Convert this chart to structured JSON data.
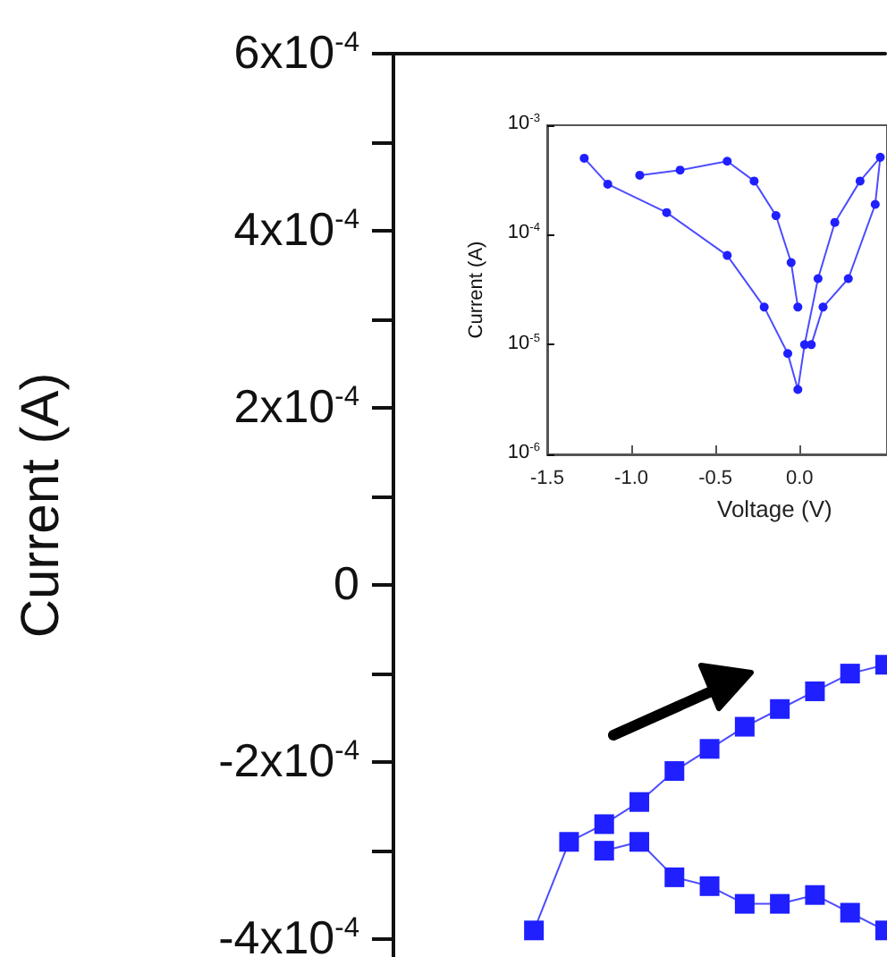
{
  "chart_data": [
    {
      "type": "line",
      "ylabel": "Current (A)",
      "tick_labels": "y",
      "marker": "square",
      "line_style": "solid",
      "categories": [
        null,
        null,
        null,
        null,
        null,
        null,
        null,
        null,
        null,
        null,
        null,
        null,
        null,
        null,
        null
      ],
      "series": [
        {
          "color": "#1f1fff",
          "values": [
            null,
            null,
            null,
            null,
            -0.00039,
            -0.00029,
            -0.00027,
            -0.000245,
            -0.00021,
            -0.000185,
            -0.00016,
            -0.00014,
            -0.00012,
            -0.0001,
            -9e-05
          ]
        },
        {
          "color": "#1f1fff",
          "values": [
            null,
            null,
            null,
            null,
            null,
            null,
            -0.0003,
            -0.00029,
            -0.00033,
            -0.00034,
            -0.00036,
            -0.00036,
            -0.00035,
            -0.00037,
            -0.00039
          ]
        }
      ],
      "ylim": [
        -0.00042,
        0.0006
      ],
      "yticks": [
        {
          "value": -0.0004,
          "label": "-4x10$^{-4}$"
        },
        {
          "value": -0.0003,
          "label": null
        },
        {
          "value": -0.0002,
          "label": "-2x10$^{-4}$"
        },
        {
          "value": -0.0001,
          "label": null
        },
        0,
        {
          "value": 0.0001,
          "label": null
        },
        {
          "value": 0.0002,
          "label": "2x10$^{-4}$"
        },
        {
          "value": 0.0003,
          "label": null
        },
        {
          "value": 0.0004,
          "label": "4x10$^{-4}$"
        },
        {
          "value": 0.0005,
          "label": null
        },
        {
          "value": 0.0006,
          "label": "6x10$^{-4}$"
        }
      ]
    },
    {
      "type": "line",
      "xlabel": "Voltage (V)",
      "ylabel": "Current (A)",
      "log": "y",
      "marker": "circle",
      "line_style": "solid",
      "series": [
        {
          "color": "#1f1fff",
          "x": [
            -1.28,
            -1.14,
            -0.79,
            -0.43,
            -0.21,
            -0.07,
            -0.01,
            0.03,
            0.11,
            0.21,
            0.36,
            0.48,
            0.45,
            0.29,
            0.14,
            0.07
          ],
          "values": [
            0.0005,
            0.00029,
            0.00016,
            6.5e-05,
            2.2e-05,
            8.3e-06,
            3.9e-06,
            1e-05,
            4e-05,
            0.00013,
            0.00031,
            0.00051,
            0.00019,
            4e-05,
            2.2e-05,
            1e-05
          ]
        },
        {
          "color": "#1f1fff",
          "x": [
            -0.95,
            -0.71,
            -0.43,
            -0.27,
            -0.14,
            -0.05,
            -0.01
          ],
          "values": [
            0.00035,
            0.00039,
            0.00047,
            0.00031,
            0.00015,
            5.6e-05,
            2.2e-05
          ]
        }
      ],
      "xlim": [
        -1.5,
        0.52
      ],
      "xticks": [
        -1.5,
        {
          "value": -1,
          "label": "-1.0"
        },
        -0.5,
        {
          "value": 0,
          "label": "0.0"
        }
      ],
      "ylim": [
        1e-06,
        0.001
      ],
      "yticks": [
        {
          "value": 1e-06,
          "label": "10$^{-6}$"
        },
        {
          "value": 1e-05,
          "label": "10$^{-5}$"
        },
        {
          "value": 0.0001,
          "label": "10$^{-4}$"
        },
        {
          "value": 0.001,
          "label": "10$^{-3}$"
        }
      ]
    }
  ]
}
